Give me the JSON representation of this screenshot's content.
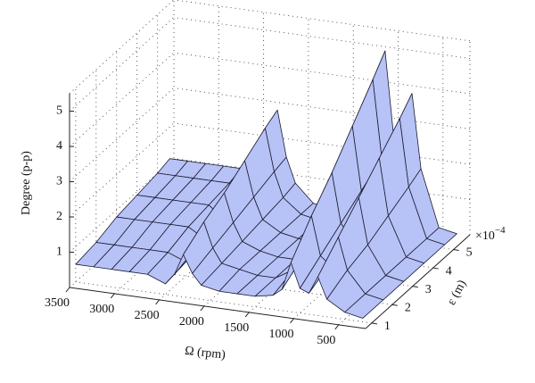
{
  "chart_data": {
    "type": "surface",
    "x_label": "Ω (rpm)",
    "y_label": "ε (m)",
    "y_multiplier": {
      "base": "×10",
      "exponent": "−4"
    },
    "z_label": "Degree (p-p)",
    "x": [
      300,
      500,
      700,
      800,
      900,
      1000,
      1100,
      1200,
      1300,
      1500,
      1700,
      1900,
      2100,
      2200,
      2300,
      2400,
      2500,
      2700,
      2900,
      3100,
      3300,
      3500
    ],
    "y": [
      1,
      2,
      3,
      4,
      5,
      5.6
    ],
    "values": [
      [
        0.1,
        0.2,
        0.5,
        1.1,
        0.6,
        0.7,
        1.4,
        0.6,
        0.4,
        0.3,
        0.3,
        0.3,
        0.4,
        0.7,
        1.2,
        0.6,
        0.3,
        0.5,
        0.5,
        0.5,
        0.5,
        0.5
      ],
      [
        0.1,
        0.2,
        0.8,
        1.7,
        0.9,
        1.1,
        2.2,
        1.0,
        0.6,
        0.3,
        0.3,
        0.4,
        0.5,
        0.9,
        1.6,
        0.8,
        0.4,
        0.6,
        0.6,
        0.6,
        0.6,
        0.6
      ],
      [
        0.1,
        0.2,
        1.0,
        2.3,
        1.2,
        1.5,
        2.9,
        1.3,
        0.7,
        0.3,
        0.3,
        0.4,
        0.6,
        1.1,
        1.9,
        1.0,
        0.5,
        0.8,
        0.8,
        0.8,
        0.8,
        0.8
      ],
      [
        0.1,
        0.2,
        1.3,
        2.9,
        1.5,
        1.9,
        3.7,
        1.7,
        0.9,
        0.3,
        0.3,
        0.4,
        0.7,
        1.3,
        2.3,
        1.2,
        0.5,
        0.9,
        0.9,
        0.9,
        0.9,
        0.9
      ],
      [
        0.1,
        0.2,
        1.6,
        3.5,
        1.8,
        2.3,
        4.5,
        2.0,
        1.1,
        0.3,
        0.3,
        0.4,
        0.8,
        1.5,
        2.7,
        1.4,
        0.6,
        1.0,
        1.0,
        1.0,
        1.0,
        1.0
      ],
      [
        0.1,
        0.2,
        1.8,
        3.9,
        2.0,
        2.5,
        5.0,
        2.3,
        1.3,
        0.3,
        0.3,
        0.4,
        0.9,
        1.6,
        2.9,
        1.5,
        0.7,
        1.1,
        1.1,
        1.1,
        1.1,
        1.1
      ]
    ],
    "color": "#b7c2f7",
    "edge_color": "#1c1c30",
    "xlim": [
      200,
      3500
    ],
    "ylim": [
      0.7,
      5.8
    ],
    "zlim": [
      0,
      5.5
    ],
    "xticks": [
      500,
      1000,
      1500,
      2000,
      2500,
      3000,
      3500
    ],
    "yticks": [
      1,
      2,
      3,
      4,
      5
    ],
    "zticks": [
      1,
      2,
      3,
      4,
      5
    ],
    "grid": true
  }
}
